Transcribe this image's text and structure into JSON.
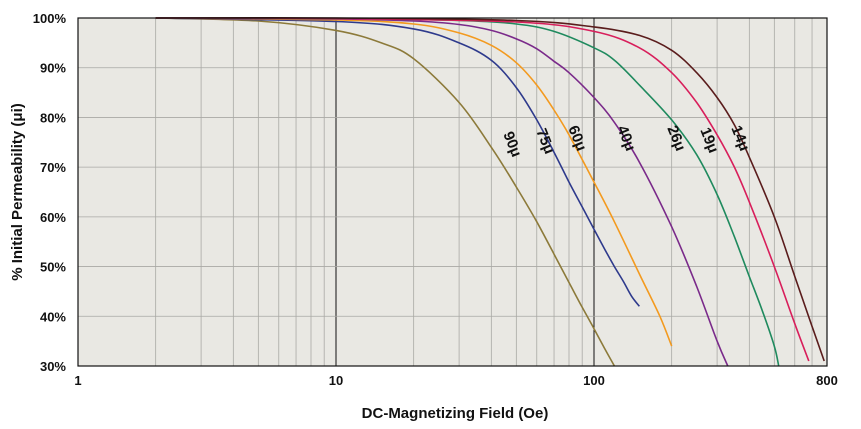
{
  "chart_data": {
    "type": "line",
    "x_scale": "log",
    "xlim": [
      1,
      800
    ],
    "ylim": [
      30,
      100
    ],
    "xlabel": "DC-Magnetizing Field (Oe)",
    "ylabel": "% Initial Permeability (μi)",
    "x_ticks": [
      "1",
      "10",
      "100",
      "800"
    ],
    "y_ticks": [
      "30%",
      "40%",
      "50%",
      "60%",
      "70%",
      "80%",
      "90%",
      "100%"
    ],
    "grid": true,
    "plot_background": "#e9e8e3",
    "series": [
      {
        "name": "90μ",
        "color": "#8c7a3a",
        "x": [
          2,
          5,
          10,
          15,
          20,
          30,
          40,
          50,
          60,
          70,
          80,
          90,
          100,
          110,
          120
        ],
        "y": [
          100,
          99.4,
          97.5,
          95,
          91.8,
          83,
          74,
          66,
          59,
          52.5,
          46.8,
          41.8,
          37.5,
          33.5,
          30
        ]
      },
      {
        "name": "75μ",
        "color": "#2e3a8c",
        "x": [
          2,
          10,
          20,
          30,
          40,
          50,
          60,
          70,
          80,
          90,
          100,
          110,
          120,
          130,
          140,
          150
        ],
        "y": [
          100,
          99.3,
          97.8,
          95,
          91.5,
          86,
          79.5,
          73,
          67,
          62,
          57.5,
          53.5,
          50,
          47,
          44,
          42
        ]
      },
      {
        "name": "60μ",
        "color": "#f39a1f",
        "x": [
          2,
          10,
          20,
          30,
          40,
          50,
          60,
          70,
          80,
          100,
          120,
          150,
          180,
          200
        ],
        "y": [
          100,
          99.6,
          98.8,
          97,
          94.5,
          91,
          86.5,
          81.5,
          76.5,
          67,
          59,
          48.5,
          40,
          34
        ]
      },
      {
        "name": "40μ",
        "color": "#7a2a8a",
        "x": [
          2,
          10,
          20,
          30,
          40,
          50,
          60,
          70,
          80,
          100,
          120,
          150,
          200,
          250,
          300,
          330
        ],
        "y": [
          100,
          99.8,
          99.4,
          98.7,
          97.5,
          95.8,
          93.8,
          91.3,
          89,
          84,
          79,
          71,
          58,
          46,
          35,
          30
        ]
      },
      {
        "name": "26μ",
        "color": "#1f8a5e",
        "x": [
          2,
          10,
          30,
          50,
          70,
          100,
          120,
          150,
          200,
          250,
          300,
          350,
          400,
          450,
          500,
          520
        ],
        "y": [
          100,
          99.9,
          99.5,
          98.8,
          97.3,
          94,
          91.5,
          86.5,
          79.5,
          72.5,
          64.5,
          56,
          48,
          41,
          34,
          30
        ]
      },
      {
        "name": "19μ",
        "color": "#d81e5b",
        "x": [
          2,
          10,
          50,
          100,
          150,
          200,
          250,
          300,
          350,
          400,
          500,
          600,
          680
        ],
        "y": [
          100,
          99.9,
          99.2,
          97.3,
          94,
          89,
          83,
          76.5,
          70,
          63,
          50,
          38.5,
          31
        ]
      },
      {
        "name": "14μ",
        "color": "#5a1c1c",
        "x": [
          2,
          10,
          50,
          100,
          150,
          200,
          250,
          300,
          350,
          400,
          500,
          600,
          700,
          780
        ],
        "y": [
          100,
          100,
          99.5,
          98.2,
          96.5,
          93.5,
          89,
          84,
          78.5,
          72,
          60,
          48,
          38,
          31
        ]
      }
    ]
  }
}
